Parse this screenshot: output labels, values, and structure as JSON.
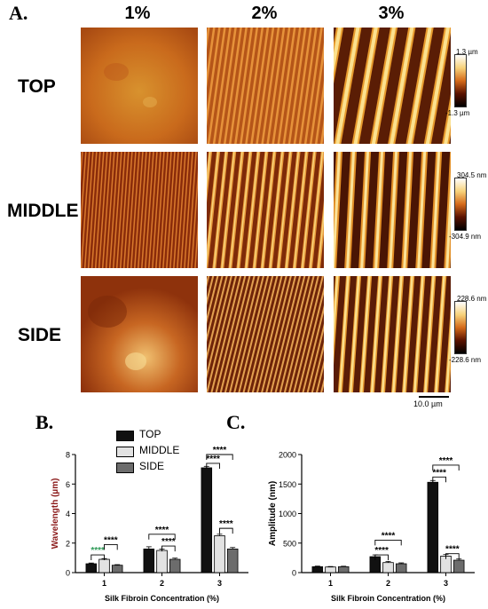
{
  "panel_a": {
    "letter": "A.",
    "columns": [
      "1%",
      "2%",
      "3%"
    ],
    "rows": [
      "TOP",
      "MIDDLE",
      "SIDE"
    ],
    "colorbars": [
      {
        "top": "1.3 µm",
        "bottom": "-1.3 µm"
      },
      {
        "top": "304.5 nm",
        "bottom": "-304.9 nm"
      },
      {
        "top": "228.6 nm",
        "bottom": "-228.6 nm"
      }
    ],
    "scale_bar": "10.0 µm"
  },
  "legend": {
    "entries": [
      "TOP",
      "MIDDLE",
      "SIDE"
    ],
    "placement": "top-left"
  },
  "colors": {
    "top": "#111111",
    "middle": "#e2e2e2",
    "side": "#6c6c6c",
    "sig_green": "#2e9a57",
    "ylabel_red": "#8b1a1a"
  },
  "chart_data": [
    {
      "type": "bar",
      "letter": "B.",
      "categories": [
        "1",
        "2",
        "3"
      ],
      "series": [
        {
          "name": "TOP",
          "values": [
            0.6,
            1.6,
            7.1
          ],
          "errors": [
            0.05,
            0.15,
            0.1
          ]
        },
        {
          "name": "MIDDLE",
          "values": [
            0.9,
            1.5,
            2.5
          ],
          "errors": [
            0.05,
            0.1,
            0.1
          ]
        },
        {
          "name": "SIDE",
          "values": [
            0.5,
            0.9,
            1.6
          ],
          "errors": [
            0.04,
            0.08,
            0.1
          ]
        }
      ],
      "xlabel": "Silk Fibroin Concentration (%)",
      "ylabel": "Wavelength (µm)",
      "ylim": [
        0,
        8
      ],
      "yticks": [
        0,
        2,
        4,
        6,
        8
      ],
      "significance": "****",
      "grid": false
    },
    {
      "type": "bar",
      "letter": "C.",
      "categories": [
        "1",
        "2",
        "3"
      ],
      "series": [
        {
          "name": "TOP",
          "values": [
            100,
            270,
            1530
          ],
          "errors": [
            10,
            30,
            30
          ]
        },
        {
          "name": "MIDDLE",
          "values": [
            95,
            170,
            280
          ],
          "errors": [
            8,
            20,
            25
          ]
        },
        {
          "name": "SIDE",
          "values": [
            100,
            150,
            210
          ],
          "errors": [
            8,
            15,
            20
          ]
        }
      ],
      "xlabel": "Silk Fibroin Concentration (%)",
      "ylabel": "Amplitude (nm)",
      "ylim": [
        0,
        2000
      ],
      "yticks": [
        0,
        500,
        1000,
        1500,
        2000
      ],
      "significance": "****",
      "grid": false
    }
  ]
}
